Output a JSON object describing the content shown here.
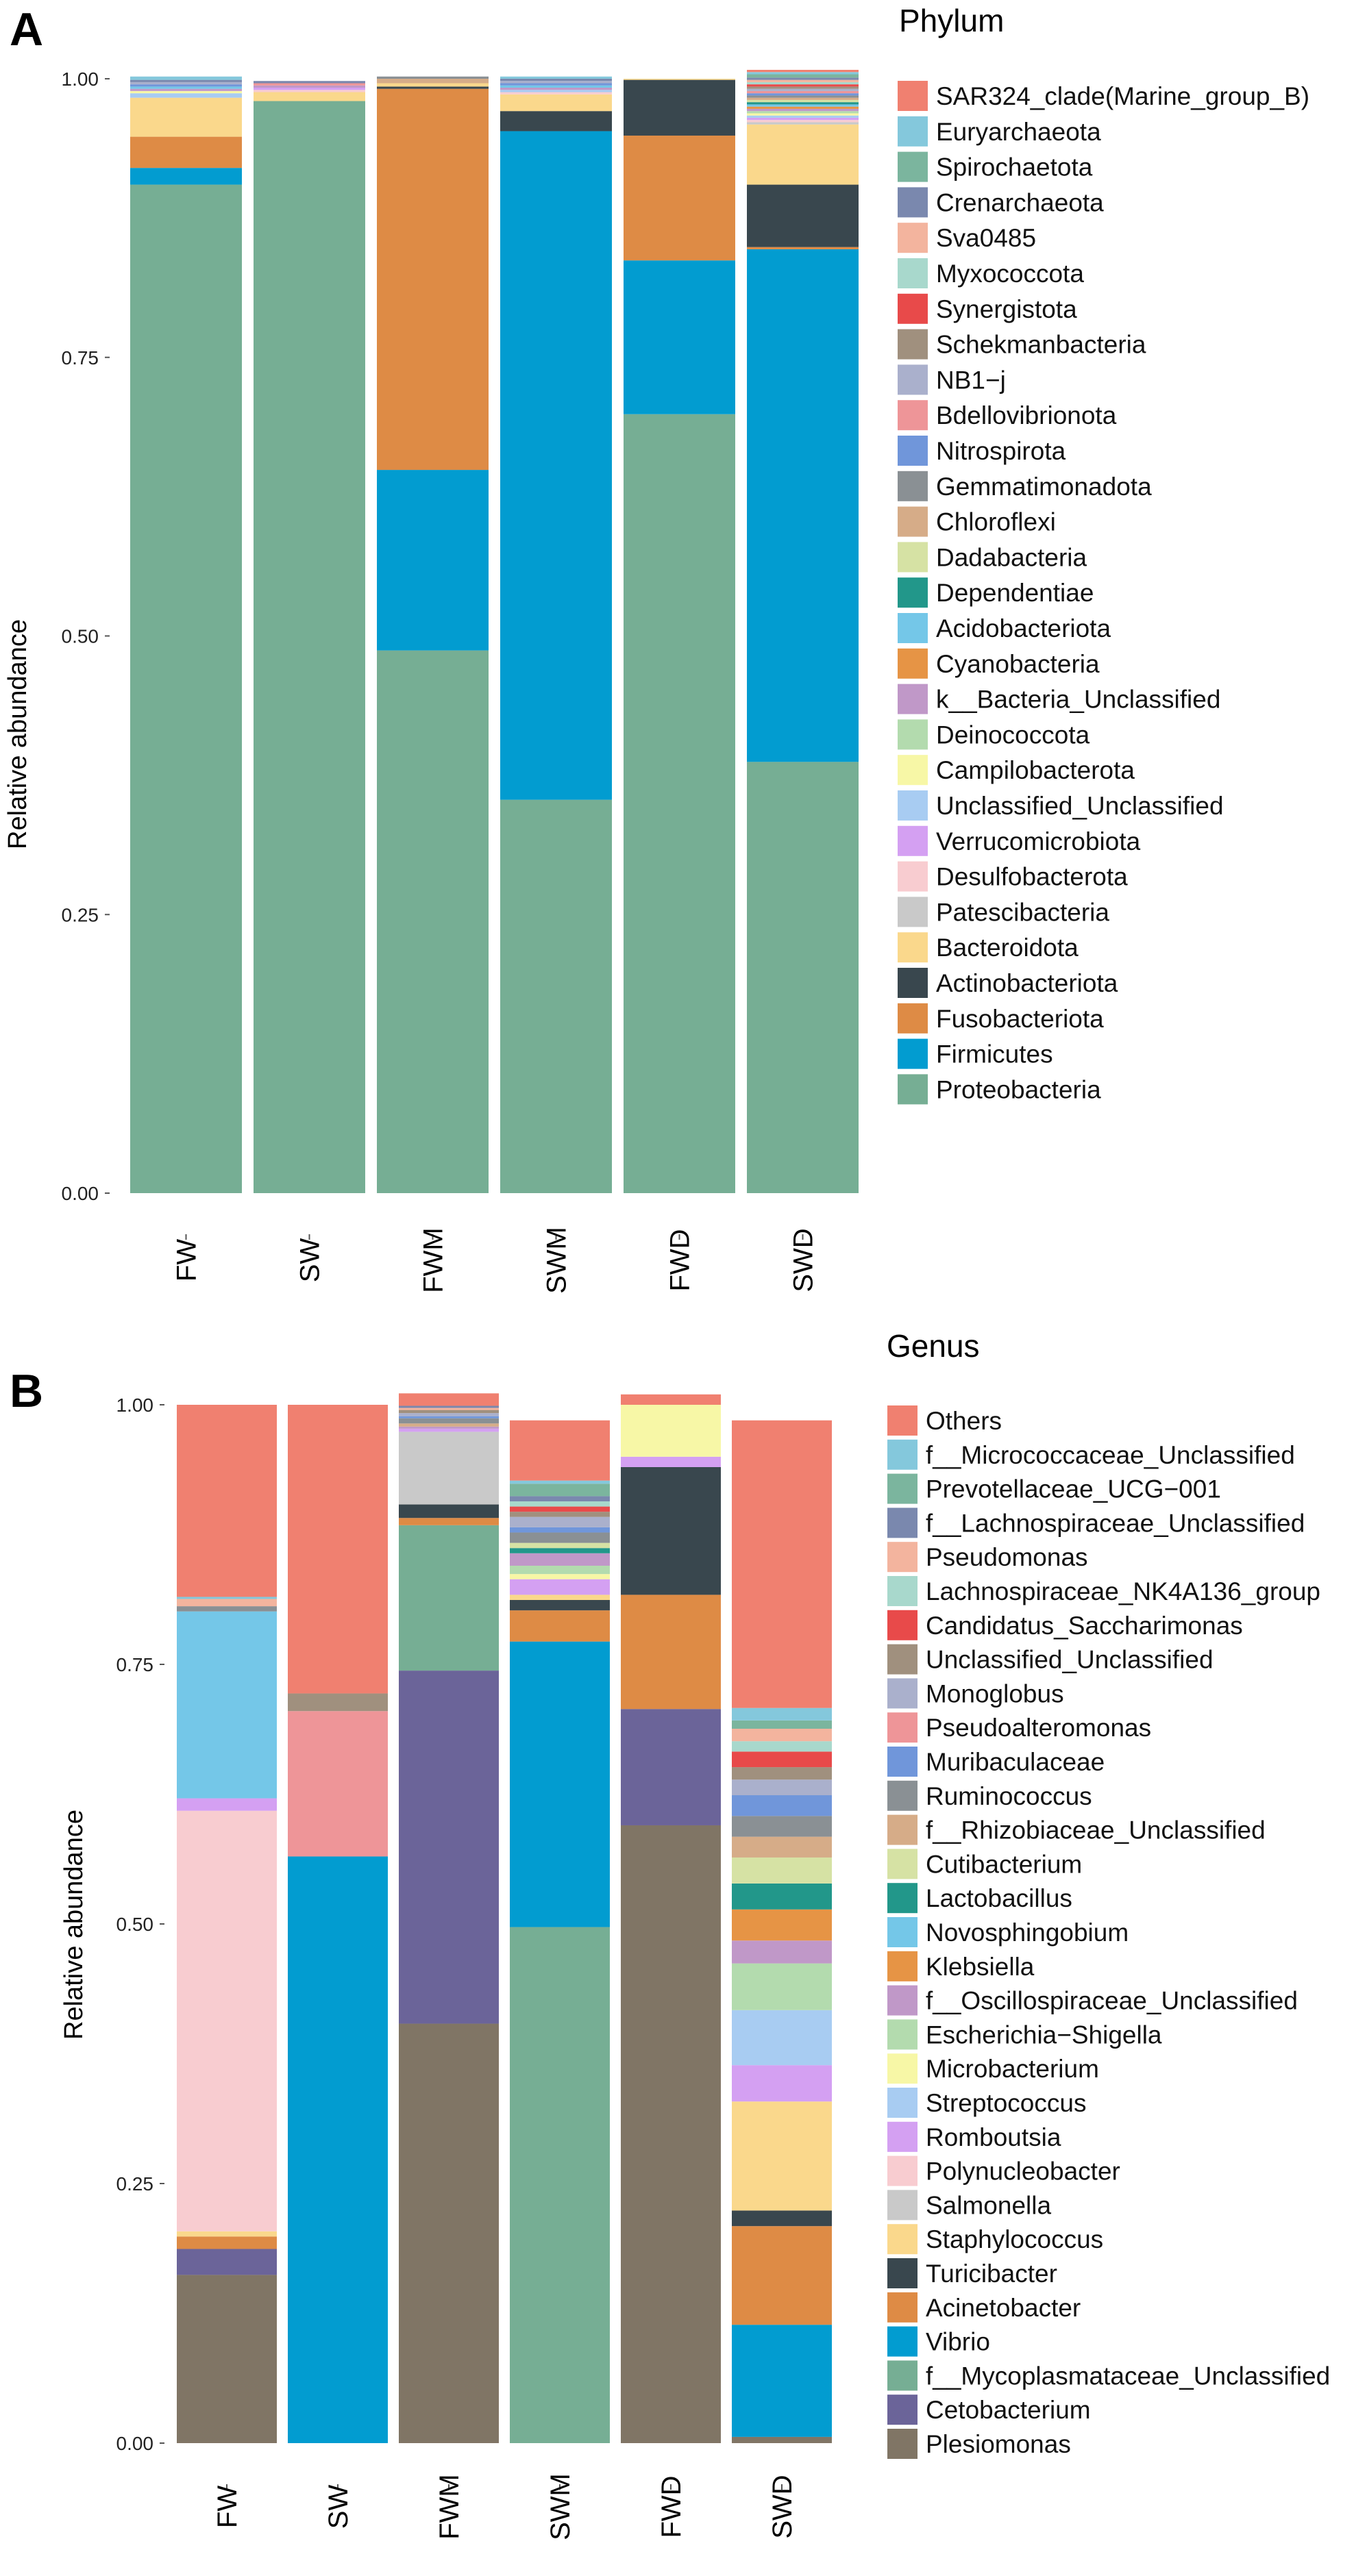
{
  "chart_data": [
    {
      "type": "bar",
      "stacked": true,
      "panel_label": "A",
      "ylabel": "Relative abundance",
      "xlabel": "",
      "ylim": [
        0,
        1
      ],
      "yticks": [
        "0.00",
        "0.25",
        "0.50",
        "0.75",
        "1.00"
      ],
      "categories": [
        "FW",
        "SW",
        "FWM",
        "SWM",
        "FWD",
        "SWD"
      ],
      "legend_title": "Phylum",
      "legend_position": "right",
      "series": [
        {
          "name": "SAR324_clade(Marine_group_B)",
          "color": "#F08070",
          "values": [
            0,
            0,
            0,
            0,
            0,
            0.002
          ]
        },
        {
          "name": "Euryarchaeota",
          "color": "#84C8DC",
          "values": [
            0.003,
            0,
            0,
            0.002,
            0,
            0.002
          ]
        },
        {
          "name": "Spirochaetota",
          "color": "#7BB59E",
          "values": [
            0,
            0,
            0,
            0,
            0,
            0.003
          ]
        },
        {
          "name": "Crenarchaeota",
          "color": "#7A88AE",
          "values": [
            0.002,
            0.002,
            0,
            0.002,
            0,
            0.002
          ]
        },
        {
          "name": "Sva0485",
          "color": "#F3B49E",
          "values": [
            0,
            0,
            0,
            0,
            0,
            0.002
          ]
        },
        {
          "name": "Myxococcota",
          "color": "#A8D8CC",
          "values": [
            0,
            0,
            0,
            0,
            0,
            0.002
          ]
        },
        {
          "name": "Synergistota",
          "color": "#E84A4A",
          "values": [
            0,
            0,
            0,
            0,
            0,
            0.002
          ]
        },
        {
          "name": "Schekmanbacteria",
          "color": "#A0907E",
          "values": [
            0,
            0,
            0,
            0,
            0,
            0.002
          ]
        },
        {
          "name": "NB1−j",
          "color": "#AAB0CC",
          "values": [
            0.002,
            0,
            0,
            0.002,
            0,
            0.002
          ]
        },
        {
          "name": "Bdellovibrionota",
          "color": "#EE9598",
          "values": [
            0,
            0.002,
            0,
            0,
            0,
            0.002
          ]
        },
        {
          "name": "Nitrospirota",
          "color": "#7096DA",
          "values": [
            0.002,
            0,
            0,
            0.002,
            0,
            0.002
          ]
        },
        {
          "name": "Gemmatimonadota",
          "color": "#8A9094",
          "values": [
            0,
            0,
            0.002,
            0,
            0,
            0.002
          ]
        },
        {
          "name": "Chloroflexi",
          "color": "#D6AC88",
          "values": [
            0,
            0,
            0.004,
            0,
            0,
            0.002
          ]
        },
        {
          "name": "Dadabacteria",
          "color": "#D6E2A4",
          "values": [
            0,
            0,
            0,
            0,
            0,
            0.002
          ]
        },
        {
          "name": "Dependentiae",
          "color": "#22978A",
          "values": [
            0,
            0,
            0,
            0,
            0,
            0.002
          ]
        },
        {
          "name": "Acidobacteriota",
          "color": "#74C7E8",
          "values": [
            0.002,
            0,
            0,
            0.002,
            0,
            0.002
          ]
        },
        {
          "name": "Cyanobacteria",
          "color": "#E69445",
          "values": [
            0,
            0,
            0,
            0,
            0,
            0.002
          ]
        },
        {
          "name": "k__Bacteria_Unclassified",
          "color": "#C098C8",
          "values": [
            0.002,
            0.002,
            0,
            0.002,
            0,
            0.002
          ]
        },
        {
          "name": "Deinococcota",
          "color": "#B3DBAE",
          "values": [
            0,
            0,
            0,
            0,
            0,
            0.002
          ]
        },
        {
          "name": "Campilobacterota",
          "color": "#F7F7A6",
          "values": [
            0.002,
            0,
            0,
            0,
            0,
            0.002
          ]
        },
        {
          "name": "Unclassified_Unclassified",
          "color": "#A8CCF2",
          "values": [
            0.004,
            0,
            0,
            0.002,
            0,
            0.002
          ]
        },
        {
          "name": "Verrucomicrobiota",
          "color": "#D4A0F2",
          "values": [
            0,
            0.002,
            0,
            0,
            0,
            0.002
          ]
        },
        {
          "name": "Desulfobacterota",
          "color": "#F8CCD0",
          "values": [
            0,
            0.002,
            0,
            0.002,
            0,
            0.002
          ]
        },
        {
          "name": "Patescibacteria",
          "color": "#C9C9C9",
          "values": [
            0,
            0,
            0,
            0,
            0,
            0.002
          ]
        },
        {
          "name": "Bacteroidota",
          "color": "#FAD88C",
          "values": [
            0.035,
            0.008,
            0.003,
            0.015,
            0.001,
            0.054
          ]
        },
        {
          "name": "Actinobacteriota",
          "color": "#39474E",
          "values": [
            0,
            0,
            0.002,
            0.018,
            0.05,
            0.056
          ]
        },
        {
          "name": "Fusobacteriota",
          "color": "#DE8B45",
          "values": [
            0.028,
            0,
            0.342,
            0,
            0.112,
            0.002
          ]
        },
        {
          "name": "Firmicutes",
          "color": "#029CD0",
          "values": [
            0.015,
            0,
            0.162,
            0.6,
            0.138,
            0.46
          ]
        },
        {
          "name": "Proteobacteria",
          "color": "#76AE94",
          "values": [
            0.905,
            0.98,
            0.487,
            0.353,
            0.699,
            0.387
          ]
        }
      ]
    },
    {
      "type": "bar",
      "stacked": true,
      "panel_label": "B",
      "ylabel": "Relative abundance",
      "xlabel": "",
      "ylim": [
        0,
        1
      ],
      "yticks": [
        "0.00",
        "0.25",
        "0.50",
        "0.75",
        "1.00"
      ],
      "categories": [
        "FW",
        "SW",
        "FWM",
        "SWM",
        "FWD",
        "SWD"
      ],
      "legend_title": "Genus",
      "legend_position": "right",
      "series": [
        {
          "name": "Others",
          "color": "#F08070",
          "values": [
            0.185,
            0.278,
            0.012,
            0.058,
            0.01,
            0.277
          ]
        },
        {
          "name": "f__Micrococcaceae_Unclassified",
          "color": "#84C8DC",
          "values": [
            0.002,
            0,
            0,
            0.003,
            0,
            0.012
          ]
        },
        {
          "name": "Prevotellaceae_UCG−001",
          "color": "#7BB59E",
          "values": [
            0,
            0,
            0,
            0.012,
            0,
            0.008
          ]
        },
        {
          "name": "f__Lachnospiraceae_Unclassified",
          "color": "#7A88AE",
          "values": [
            0,
            0,
            0.002,
            0.005,
            0,
            0
          ]
        },
        {
          "name": "Pseudomonas",
          "color": "#F3B49E",
          "values": [
            0.007,
            0,
            0.002,
            0,
            0,
            0.012
          ]
        },
        {
          "name": "Lachnospiraceae_NK4A136_group",
          "color": "#A8D8CC",
          "values": [
            0,
            0,
            0,
            0.005,
            0,
            0.01
          ]
        },
        {
          "name": "Candidatus_Saccharimonas",
          "color": "#E84A4A",
          "values": [
            0,
            0,
            0,
            0.005,
            0,
            0.015
          ]
        },
        {
          "name": "Unclassified_Unclassified",
          "color": "#A0907E",
          "values": [
            0,
            0.017,
            0.003,
            0.005,
            0,
            0.012
          ]
        },
        {
          "name": "Monoglobus",
          "color": "#AAB0CC",
          "values": [
            0,
            0,
            0.003,
            0.01,
            0,
            0.015
          ]
        },
        {
          "name": "Pseudoalteromonas",
          "color": "#EE9598",
          "values": [
            0,
            0.14,
            0,
            0,
            0,
            0
          ]
        },
        {
          "name": "Muribaculaceae",
          "color": "#7096DA",
          "values": [
            0,
            0,
            0.002,
            0.005,
            0,
            0.02
          ]
        },
        {
          "name": "Ruminococcus",
          "color": "#8A9094",
          "values": [
            0.005,
            0,
            0.005,
            0.01,
            0,
            0.02
          ]
        },
        {
          "name": "f__Rhizobiaceae_Unclassified",
          "color": "#D6AC88",
          "values": [
            0,
            0,
            0.003,
            0,
            0,
            0.02
          ]
        },
        {
          "name": "Cutibacterium",
          "color": "#D6E2A4",
          "values": [
            0,
            0,
            0,
            0.005,
            0,
            0.025
          ]
        },
        {
          "name": "Lactobacillus",
          "color": "#22978A",
          "values": [
            0,
            0,
            0,
            0.005,
            0,
            0.025
          ]
        },
        {
          "name": "Novosphingobium",
          "color": "#74C7E8",
          "values": [
            0.18,
            0,
            0,
            0,
            0,
            0
          ]
        },
        {
          "name": "Klebsiella",
          "color": "#E69445",
          "values": [
            0,
            0,
            0,
            0,
            0,
            0.03
          ]
        },
        {
          "name": "f__Oscillospiraceae_Unclassified",
          "color": "#C098C8",
          "values": [
            0,
            0,
            0.002,
            0.012,
            0,
            0.022
          ]
        },
        {
          "name": "Escherichia−Shigella",
          "color": "#B3DBAE",
          "values": [
            0,
            0,
            0,
            0.008,
            0,
            0.045
          ]
        },
        {
          "name": "Microbacterium",
          "color": "#F7F7A6",
          "values": [
            0,
            0,
            0,
            0.005,
            0.05,
            0
          ]
        },
        {
          "name": "Streptococcus",
          "color": "#A8CCF2",
          "values": [
            0,
            0,
            0,
            0,
            0,
            0.053
          ]
        },
        {
          "name": "Romboutsia",
          "color": "#D4A0F2",
          "values": [
            0.012,
            0,
            0.003,
            0.015,
            0.01,
            0.035
          ]
        },
        {
          "name": "Polynucleobacter",
          "color": "#F8CCD0",
          "values": [
            0.405,
            0,
            0,
            0,
            0,
            0
          ]
        },
        {
          "name": "Salmonella",
          "color": "#C9C9C9",
          "values": [
            0,
            0,
            0.07,
            0,
            0,
            0
          ]
        },
        {
          "name": "Staphylococcus",
          "color": "#FAD88C",
          "values": [
            0.005,
            0,
            0,
            0.005,
            0,
            0.105
          ]
        },
        {
          "name": "Turicibacter",
          "color": "#39474E",
          "values": [
            0,
            0,
            0.013,
            0.01,
            0.123,
            0.015
          ]
        },
        {
          "name": "Acinetobacter",
          "color": "#DE8B45",
          "values": [
            0.012,
            0,
            0.007,
            0.03,
            0.11,
            0.095
          ]
        },
        {
          "name": "Vibrio",
          "color": "#029CD0",
          "values": [
            0,
            0.565,
            0,
            0.275,
            0,
            0.108
          ]
        },
        {
          "name": "f__Mycoplasmataceae_Unclassified",
          "color": "#76AE94",
          "values": [
            0,
            0,
            0.14,
            0.497,
            0,
            0
          ]
        },
        {
          "name": "Cetobacterium",
          "color": "#6B6499",
          "values": [
            0.025,
            0,
            0.34,
            0,
            0.112,
            0
          ]
        },
        {
          "name": "Plesiomonas",
          "color": "#807565",
          "values": [
            0.162,
            0,
            0.404,
            0,
            0.595,
            0.006
          ]
        }
      ]
    }
  ]
}
